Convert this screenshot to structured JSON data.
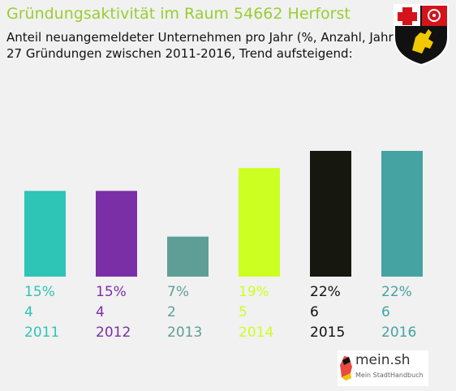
{
  "title": "Gründungsaktivität im Raum 54662 Herforst",
  "subtitle_line1": "Anteil neuangemeldeter Unternehmen pro Jahr (%, Anzahl, Jahr)",
  "subtitle_line2": "27 Gründungen zwischen 2011-2016, Trend aufsteigend:",
  "logo": {
    "name": "mein.sh",
    "tagline": "Mein StadtHandbuch"
  },
  "icons": {
    "crest": "rhineland-palatinate-coat-of-arms-icon",
    "logo_mark": "germany-map-icon"
  },
  "chart_data": {
    "type": "bar",
    "categories": [
      "2011",
      "2012",
      "2013",
      "2014",
      "2015",
      "2016"
    ],
    "percent_labels": [
      "15%",
      "15%",
      "7%",
      "19%",
      "22%",
      "22%"
    ],
    "counts": [
      4,
      4,
      2,
      5,
      6,
      6
    ],
    "values": [
      15,
      15,
      7,
      19,
      22,
      22
    ],
    "colors": [
      "#2ec4b6",
      "#7b2fa6",
      "#5f9e96",
      "#ccff22",
      "#16170e",
      "#45a3a1"
    ],
    "label_colors": [
      "#2ec4b6",
      "#7b2fa6",
      "#5f9e96",
      "#ccff22",
      "#111111",
      "#45a3a1"
    ],
    "ylim": [
      0,
      22
    ]
  }
}
